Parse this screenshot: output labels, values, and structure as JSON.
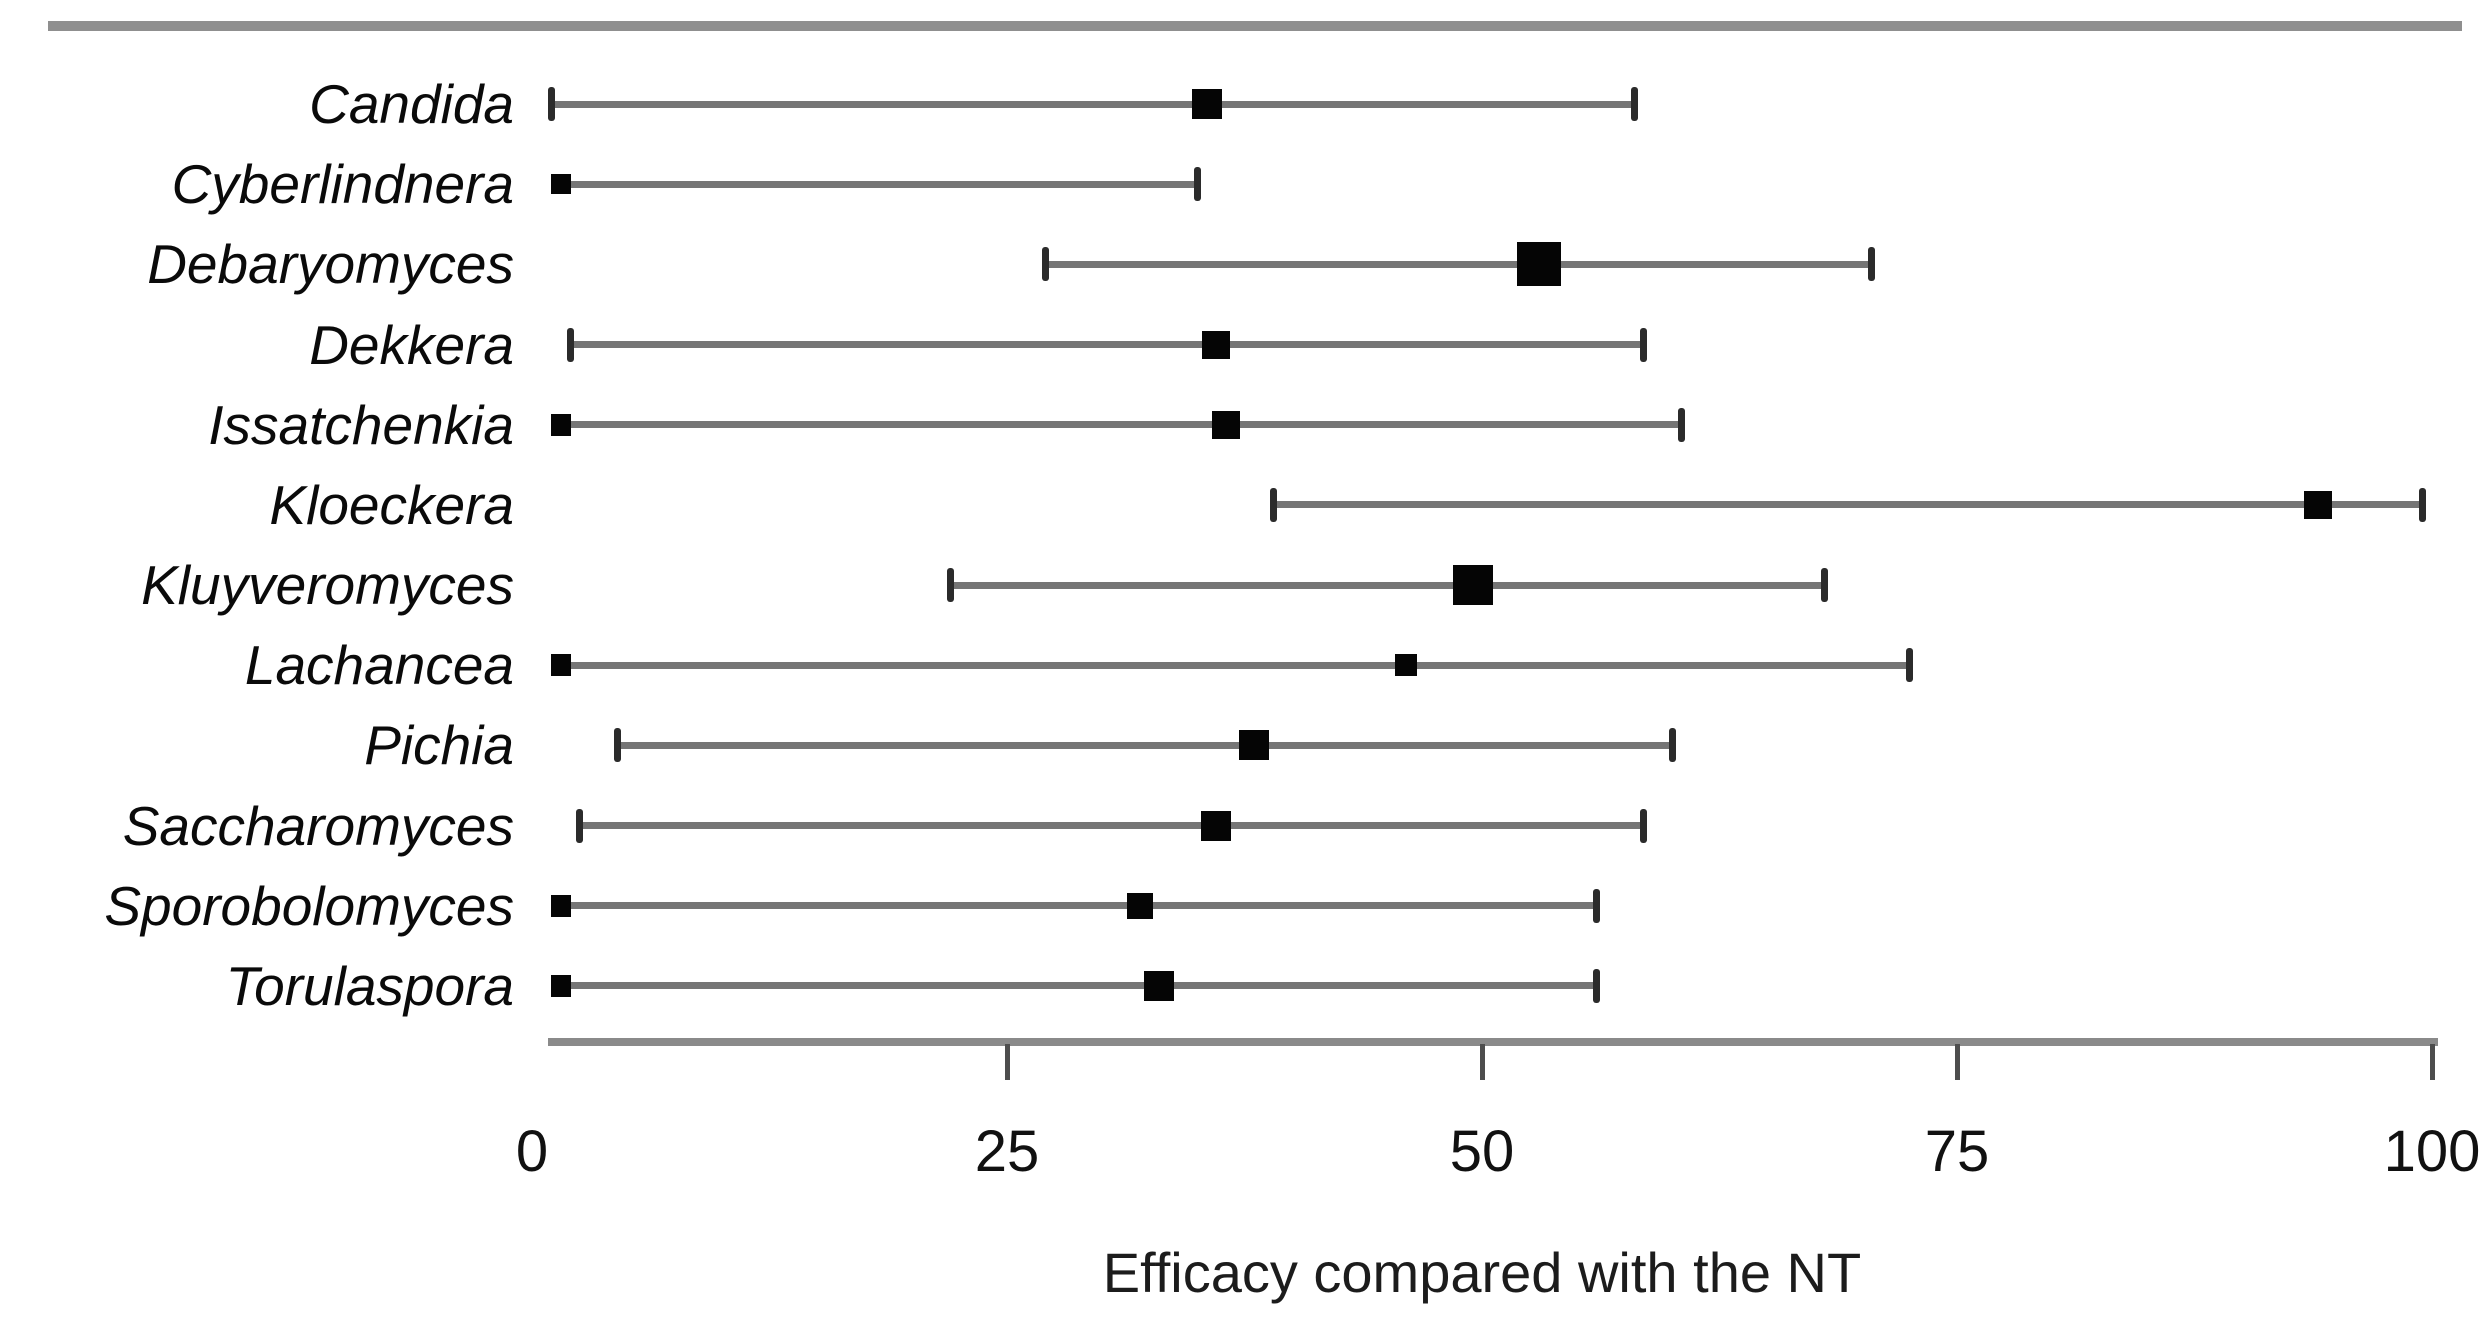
{
  "figure": {
    "background": "#ffffff",
    "top_rule_color": "#8f8f8f"
  },
  "chart_data": {
    "type": "scatter",
    "variant": "forest-plot",
    "title": "",
    "xlabel": "Efficacy compared with the NT",
    "xlim": [
      0,
      100
    ],
    "xticks": [
      0,
      25,
      50,
      75,
      100
    ],
    "grid": false,
    "legend": "none",
    "categories": [
      "Candida",
      "Cyberlindnera",
      "Debaryomyces",
      "Dekkera",
      "Issatchenkia",
      "Kloeckera",
      "Kluyveromyces",
      "Lachancea",
      "Pichia",
      "Saccharomyces",
      "Sporobolomyces",
      "Torulaspora"
    ],
    "series": [
      {
        "name": "Candida",
        "estimate": 35.5,
        "ci_low": 1,
        "ci_high": 58,
        "marker_size": 30,
        "ci_low_cap": "tick"
      },
      {
        "name": "Cyberlindnera",
        "estimate": 1.5,
        "ci_low": 1.5,
        "ci_high": 35,
        "marker_size": 20,
        "ci_low_cap": "none"
      },
      {
        "name": "Debaryomyces",
        "estimate": 53,
        "ci_low": 27,
        "ci_high": 70.5,
        "marker_size": 44,
        "ci_low_cap": "tick"
      },
      {
        "name": "Dekkera",
        "estimate": 36,
        "ci_low": 2,
        "ci_high": 58.5,
        "marker_size": 28,
        "ci_low_cap": "tick"
      },
      {
        "name": "Issatchenkia",
        "estimate": 36.5,
        "ci_low": 1.5,
        "ci_high": 60.5,
        "marker_size": 28,
        "ci_low_cap": "square"
      },
      {
        "name": "Kloeckera",
        "estimate": 94,
        "ci_low": 39,
        "ci_high": 99.5,
        "marker_size": 28,
        "ci_low_cap": "tick"
      },
      {
        "name": "Kluyveromyces",
        "estimate": 49.5,
        "ci_low": 22,
        "ci_high": 68,
        "marker_size": 40,
        "ci_low_cap": "tick"
      },
      {
        "name": "Lachancea",
        "estimate": 46,
        "ci_low": 1.5,
        "ci_high": 72.5,
        "marker_size": 22,
        "ci_low_cap": "square"
      },
      {
        "name": "Pichia",
        "estimate": 38,
        "ci_low": 4.5,
        "ci_high": 60,
        "marker_size": 30,
        "ci_low_cap": "tick"
      },
      {
        "name": "Saccharomyces",
        "estimate": 36,
        "ci_low": 2.5,
        "ci_high": 58.5,
        "marker_size": 30,
        "ci_low_cap": "tick"
      },
      {
        "name": "Sporobolomyces",
        "estimate": 32,
        "ci_low": 1.5,
        "ci_high": 56,
        "marker_size": 26,
        "ci_low_cap": "square"
      },
      {
        "name": "Torulaspora",
        "estimate": 33,
        "ci_low": 1.5,
        "ci_high": 56,
        "marker_size": 30,
        "ci_low_cap": "square"
      }
    ],
    "colors": {
      "marker": "#050505",
      "ci_line": "#757575",
      "ci_cap": "#2b2b2b",
      "axis_line": "#8a8a8a",
      "axis_tick": "#4d4d4d",
      "text": "#111111"
    }
  }
}
